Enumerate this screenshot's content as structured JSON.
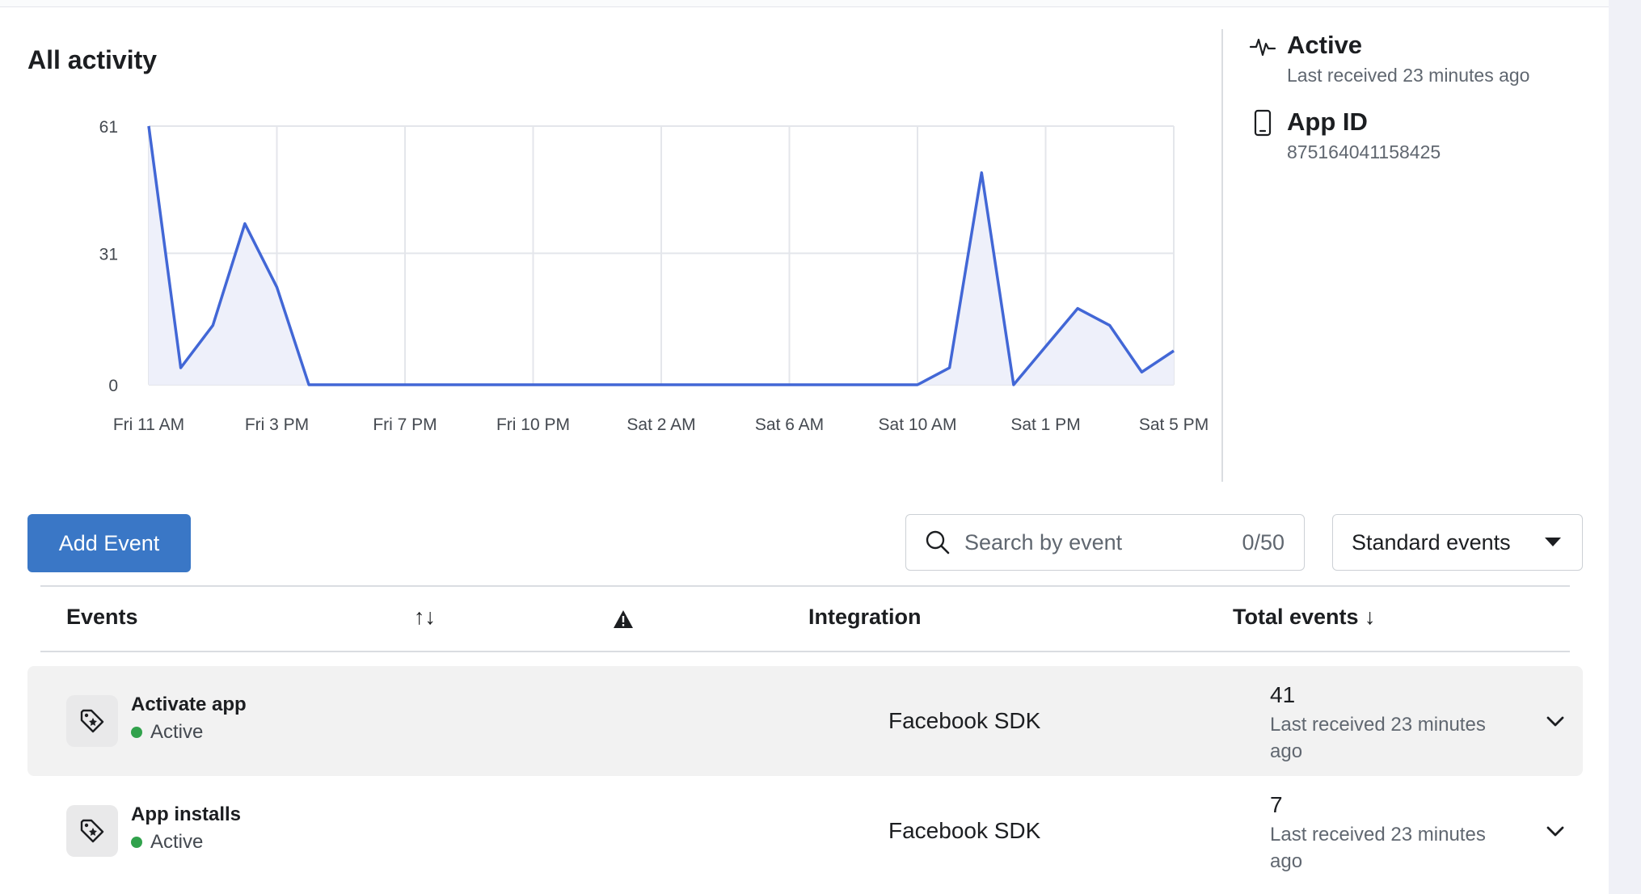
{
  "section_title": "All activity",
  "chart_data": {
    "type": "area",
    "title": "",
    "xlabel": "",
    "ylabel": "",
    "ylim": [
      0,
      61
    ],
    "yticks": [
      "0",
      "31",
      "61"
    ],
    "xticks": [
      "Fri 11 AM",
      "Fri 3 PM",
      "Fri 7 PM",
      "Fri 10 PM",
      "Sat 2 AM",
      "Sat 6 AM",
      "Sat 10 AM",
      "Sat 1 PM",
      "Sat 5 PM"
    ],
    "x": [
      0,
      0.25,
      0.5,
      0.75,
      1,
      1.25,
      1.5,
      1.75,
      2,
      2.25,
      2.5,
      2.75,
      3,
      3.25,
      3.5,
      3.75,
      4,
      4.25,
      4.5,
      4.75,
      5,
      5.25,
      5.5,
      5.75,
      6,
      6.25,
      6.5,
      6.75,
      7,
      7.25,
      7.5,
      7.75,
      8
    ],
    "values": [
      61,
      4,
      14,
      38,
      23,
      0,
      0,
      0,
      0,
      0,
      0,
      0,
      0,
      0,
      0,
      0,
      0,
      0,
      0,
      0,
      0,
      0,
      0,
      0,
      0,
      4,
      50,
      0,
      9,
      18,
      14,
      3,
      8
    ],
    "grid": true,
    "line_color": "#4267d6",
    "fill_color": "#eef0fa"
  },
  "status": {
    "active_title": "Active",
    "active_sub": "Last received 23 minutes ago",
    "appid_title": "App ID",
    "appid_value": "875164041158425"
  },
  "toolbar": {
    "add_event_label": "Add Event",
    "search_placeholder": "Search by event",
    "search_count": "0/50",
    "filter_label": "Standard events"
  },
  "table": {
    "headers": {
      "events": "Events",
      "sort_icon": "↑↓",
      "warning_icon": "warning-icon",
      "integration": "Integration",
      "total_events": "Total events ↓"
    },
    "rows": [
      {
        "name": "Activate app",
        "status": "Active",
        "integration": "Facebook SDK",
        "total": "41",
        "last_received": "Last received 23 minutes ago"
      },
      {
        "name": "App installs",
        "status": "Active",
        "integration": "Facebook SDK",
        "total": "7",
        "last_received": "Last received 23 minutes ago"
      }
    ]
  },
  "colors": {
    "accent": "#3a77c6",
    "active_dot": "#31a24c"
  }
}
